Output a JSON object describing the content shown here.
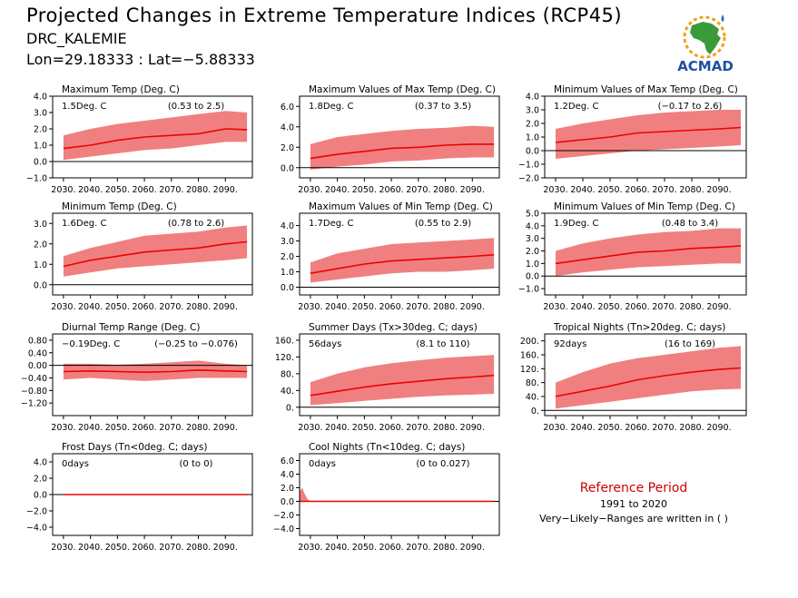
{
  "header": {
    "title": "Projected Changes in Extreme Temperature Indices (RCP45)",
    "location": "DRC_KALEMIE",
    "coords": "Lon=29.18333 : Lat=−5.88333"
  },
  "logo": {
    "text": "ACMAD",
    "icon": "africa-map-icon"
  },
  "reference": {
    "title": "Reference Period",
    "years": "1991 to 2020",
    "note": "Very−Likely−Ranges are written in ( )"
  },
  "colors": {
    "line": "#ee0000",
    "band": "#f08080",
    "zero": "#000000"
  },
  "x_tick_labels": [
    "2030.",
    "2040.",
    "2050.",
    "2060.",
    "2070.",
    "2080.",
    "2090."
  ],
  "chart_data": [
    {
      "type": "area",
      "title": "Maximum Temp (Deg. C)",
      "change": "1.5Deg. C",
      "range": "(0.53 to 2.5)",
      "xlim": [
        2026,
        2100
      ],
      "ylim": [
        -1.0,
        4.0
      ],
      "yticks": [
        -1.0,
        0.0,
        1.0,
        2.0,
        3.0,
        4.0
      ],
      "ytick_labels": [
        "−1.0",
        "0.0",
        "1.0",
        "2.0",
        "3.0",
        "4.0"
      ],
      "x": [
        2030,
        2040,
        2050,
        2060,
        2070,
        2080,
        2090,
        2098
      ],
      "median": [
        0.8,
        1.0,
        1.3,
        1.5,
        1.6,
        1.7,
        2.0,
        1.95
      ],
      "low": [
        0.1,
        0.3,
        0.5,
        0.7,
        0.8,
        1.0,
        1.2,
        1.2
      ],
      "high": [
        1.6,
        2.0,
        2.3,
        2.5,
        2.7,
        2.9,
        3.1,
        3.0
      ]
    },
    {
      "type": "area",
      "title": "Maximum Values of Max Temp (Deg. C)",
      "change": "1.8Deg. C",
      "range": "(0.37 to 3.5)",
      "xlim": [
        2026,
        2100
      ],
      "ylim": [
        -1.0,
        7.0
      ],
      "yticks": [
        0.0,
        2.0,
        4.0,
        6.0
      ],
      "ytick_labels": [
        "0.0",
        "2.0",
        "4.0",
        "6.0"
      ],
      "x": [
        2030,
        2040,
        2050,
        2060,
        2070,
        2080,
        2090,
        2098
      ],
      "median": [
        0.9,
        1.3,
        1.6,
        1.9,
        2.0,
        2.2,
        2.3,
        2.3
      ],
      "low": [
        -0.2,
        0.1,
        0.3,
        0.6,
        0.7,
        0.9,
        1.0,
        1.0
      ],
      "high": [
        2.3,
        3.0,
        3.3,
        3.6,
        3.8,
        3.9,
        4.1,
        4.0
      ]
    },
    {
      "type": "area",
      "title": "Minimum Values of Max Temp (Deg. C)",
      "change": "1.2Deg. C",
      "range": "(−0.17 to 2.6)",
      "xlim": [
        2026,
        2100
      ],
      "ylim": [
        -2.0,
        4.0
      ],
      "yticks": [
        -2.0,
        -1.0,
        0.0,
        1.0,
        2.0,
        3.0,
        4.0
      ],
      "ytick_labels": [
        "−2.0",
        "−1.0",
        "0.0",
        "1.0",
        "2.0",
        "3.0",
        "4.0"
      ],
      "x": [
        2030,
        2040,
        2050,
        2060,
        2070,
        2080,
        2090,
        2098
      ],
      "median": [
        0.6,
        0.8,
        1.0,
        1.3,
        1.4,
        1.5,
        1.6,
        1.7
      ],
      "low": [
        -0.6,
        -0.4,
        -0.2,
        0.0,
        0.1,
        0.2,
        0.3,
        0.4
      ],
      "high": [
        1.6,
        2.0,
        2.3,
        2.6,
        2.8,
        2.9,
        3.0,
        3.0
      ]
    },
    {
      "type": "area",
      "title": "Minimum Temp (Deg. C)",
      "change": "1.6Deg. C",
      "range": "(0.78 to 2.6)",
      "xlim": [
        2026,
        2100
      ],
      "ylim": [
        -0.5,
        3.5
      ],
      "yticks": [
        0.0,
        1.0,
        2.0,
        3.0
      ],
      "ytick_labels": [
        "0.0",
        "1.0",
        "2.0",
        "3.0"
      ],
      "x": [
        2030,
        2040,
        2050,
        2060,
        2070,
        2080,
        2090,
        2098
      ],
      "median": [
        0.9,
        1.2,
        1.4,
        1.6,
        1.7,
        1.8,
        2.0,
        2.1
      ],
      "low": [
        0.4,
        0.6,
        0.8,
        0.9,
        1.0,
        1.1,
        1.2,
        1.3
      ],
      "high": [
        1.4,
        1.8,
        2.1,
        2.4,
        2.5,
        2.6,
        2.8,
        2.9
      ]
    },
    {
      "type": "area",
      "title": "Maximum Values of Min Temp (Deg. C)",
      "change": "1.7Deg. C",
      "range": "(0.55 to 2.9)",
      "xlim": [
        2026,
        2100
      ],
      "ylim": [
        -0.5,
        4.8
      ],
      "yticks": [
        0.0,
        1.0,
        2.0,
        3.0,
        4.0
      ],
      "ytick_labels": [
        "0.0",
        "1.0",
        "2.0",
        "3.0",
        "4.0"
      ],
      "x": [
        2030,
        2040,
        2050,
        2060,
        2070,
        2080,
        2090,
        2098
      ],
      "median": [
        0.9,
        1.2,
        1.5,
        1.7,
        1.8,
        1.9,
        2.0,
        2.1
      ],
      "low": [
        0.3,
        0.5,
        0.7,
        0.9,
        1.0,
        1.0,
        1.1,
        1.2
      ],
      "high": [
        1.6,
        2.2,
        2.5,
        2.8,
        2.9,
        3.0,
        3.1,
        3.2
      ]
    },
    {
      "type": "area",
      "title": "Minimum Values of Min Temp (Deg. C)",
      "change": "1.9Deg. C",
      "range": "(0.48 to 3.4)",
      "xlim": [
        2026,
        2100
      ],
      "ylim": [
        -1.5,
        5.0
      ],
      "yticks": [
        -1.0,
        0.0,
        1.0,
        2.0,
        3.0,
        4.0,
        5.0
      ],
      "ytick_labels": [
        "−1.0",
        "0.0",
        "1.0",
        "2.0",
        "3.0",
        "4.0",
        "5.0"
      ],
      "x": [
        2030,
        2040,
        2050,
        2060,
        2070,
        2080,
        2090,
        2098
      ],
      "median": [
        1.0,
        1.3,
        1.6,
        1.9,
        2.0,
        2.2,
        2.3,
        2.4
      ],
      "low": [
        0.0,
        0.3,
        0.5,
        0.7,
        0.8,
        0.9,
        1.0,
        1.0
      ],
      "high": [
        2.0,
        2.6,
        3.0,
        3.3,
        3.5,
        3.6,
        3.8,
        3.8
      ]
    },
    {
      "type": "area",
      "title": "Diurnal Temp Range (Deg. C)",
      "change": "−0.19Deg. C",
      "range": "(−0.25 to −0.076)",
      "xlim": [
        2026,
        2100
      ],
      "ylim": [
        -1.6,
        1.0
      ],
      "yticks": [
        -1.2,
        -0.8,
        -0.4,
        0.0,
        0.4,
        0.8
      ],
      "ytick_labels": [
        "−1.20",
        "−0.80",
        "−0.40",
        "0.00",
        "0.40",
        "0.80"
      ],
      "x": [
        2030,
        2040,
        2050,
        2060,
        2070,
        2080,
        2090,
        2098
      ],
      "median": [
        -0.2,
        -0.18,
        -0.2,
        -0.22,
        -0.2,
        -0.15,
        -0.18,
        -0.2
      ],
      "low": [
        -0.45,
        -0.4,
        -0.45,
        -0.5,
        -0.45,
        -0.4,
        -0.4,
        -0.4
      ],
      "high": [
        0.05,
        0.05,
        0.02,
        0.05,
        0.1,
        0.15,
        0.05,
        0.0
      ]
    },
    {
      "type": "area",
      "title": "Summer Days (Tx>30deg. C; days)",
      "change": "56days",
      "range": "(8.1 to 110)",
      "xlim": [
        2026,
        2100
      ],
      "ylim": [
        -20,
        175
      ],
      "yticks": [
        0,
        40,
        80,
        120,
        160
      ],
      "ytick_labels": [
        "0.",
        "40.",
        "80.",
        "120.",
        "160."
      ],
      "x": [
        2030,
        2040,
        2050,
        2060,
        2070,
        2080,
        2090,
        2098
      ],
      "median": [
        28,
        38,
        48,
        56,
        62,
        68,
        72,
        76
      ],
      "low": [
        5,
        10,
        15,
        20,
        25,
        28,
        30,
        32
      ],
      "high": [
        60,
        80,
        95,
        105,
        112,
        118,
        122,
        125
      ]
    },
    {
      "type": "area",
      "title": "Tropical Nights (Tn>20deg. C; days)",
      "change": "92days",
      "range": "(16 to 169)",
      "xlim": [
        2026,
        2100
      ],
      "ylim": [
        -15,
        220
      ],
      "yticks": [
        0,
        40,
        80,
        120,
        160,
        200
      ],
      "ytick_labels": [
        "0.",
        "40.",
        "80.",
        "120.",
        "160.",
        "200."
      ],
      "x": [
        2030,
        2040,
        2050,
        2060,
        2070,
        2080,
        2090,
        2098
      ],
      "median": [
        40,
        55,
        70,
        88,
        100,
        110,
        118,
        122
      ],
      "low": [
        5,
        15,
        25,
        35,
        45,
        55,
        60,
        62
      ],
      "high": [
        80,
        110,
        135,
        150,
        160,
        170,
        180,
        185
      ]
    },
    {
      "type": "area",
      "title": "Frost Days (Tn<0deg. C; days)",
      "change": "0days",
      "range": "(0 to 0)",
      "xlim": [
        2026,
        2100
      ],
      "ylim": [
        -5.0,
        5.0
      ],
      "yticks": [
        -4.0,
        -2.0,
        0.0,
        2.0,
        4.0
      ],
      "ytick_labels": [
        "−4.0",
        "−2.0",
        "0.0",
        "2.0",
        "4.0"
      ],
      "x": [
        2030,
        2098
      ],
      "median": [
        0,
        0
      ],
      "low": [
        0,
        0
      ],
      "high": [
        0,
        0
      ]
    },
    {
      "type": "area",
      "title": "Cool Nights (Tn<10deg. C; days)",
      "change": "0days",
      "range": "(0 to 0.027)",
      "xlim": [
        2026,
        2100
      ],
      "ylim": [
        -5.0,
        7.0
      ],
      "yticks": [
        -4.0,
        -2.0,
        0.0,
        2.0,
        4.0,
        6.0
      ],
      "ytick_labels": [
        "−4.0",
        "−2.0",
        "0.0",
        "2.0",
        "4.0",
        "6.0"
      ],
      "x": [
        2026,
        2027,
        2028,
        2029,
        2030,
        2098
      ],
      "median": [
        0,
        0,
        0,
        0,
        0,
        0
      ],
      "low": [
        0,
        0,
        0,
        0,
        0,
        0
      ],
      "high": [
        1.5,
        2.0,
        1.0,
        0.3,
        0,
        0
      ]
    }
  ]
}
